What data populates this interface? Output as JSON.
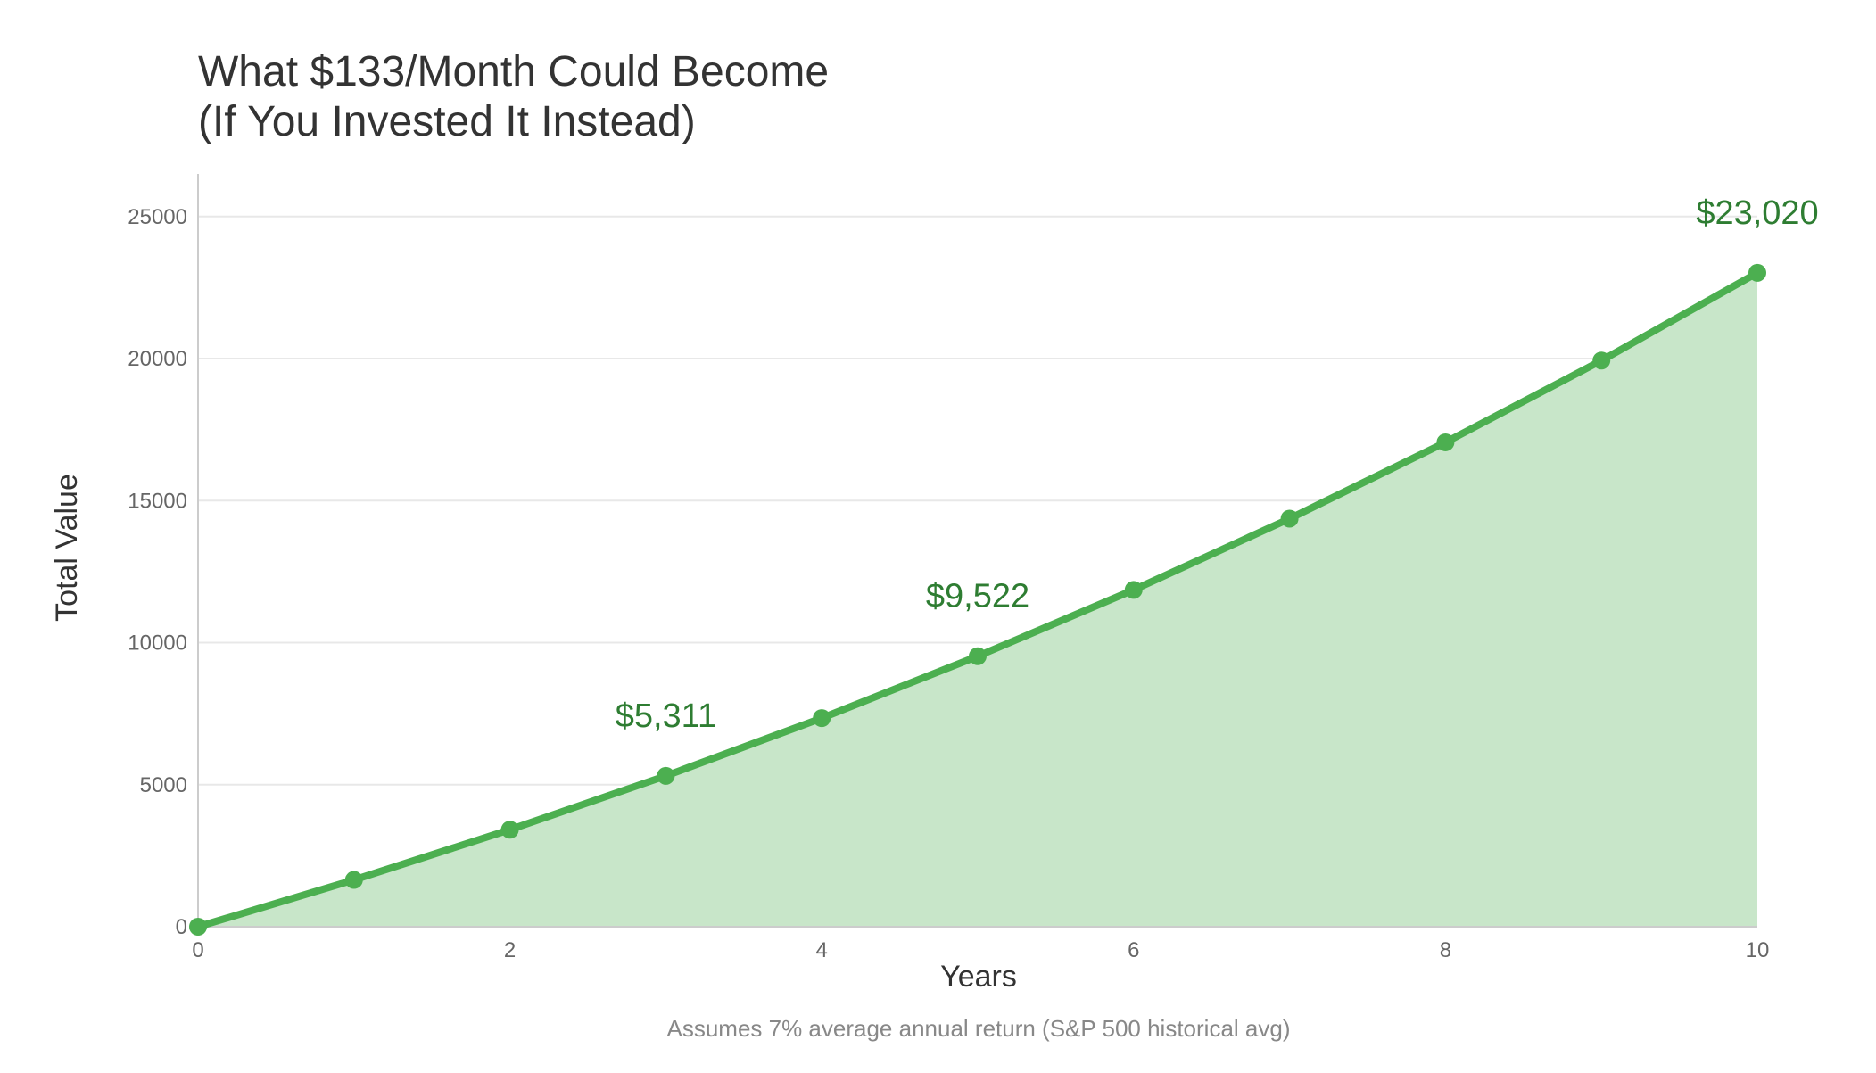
{
  "chart_data": {
    "type": "area",
    "title_lines": [
      "What $133/Month Could Become",
      "(If You Invested It Instead)"
    ],
    "xlabel": "Years",
    "ylabel": "Total Value",
    "footnote": "Assumes 7% average annual return (S&P 500 historical avg)",
    "x": [
      0,
      1,
      2,
      3,
      4,
      5,
      6,
      7,
      8,
      9,
      10
    ],
    "values": [
      0,
      1648,
      3416,
      5311,
      7343,
      9522,
      11858,
      14365,
      17051,
      19931,
      23020
    ],
    "xlim": [
      0,
      10
    ],
    "ylim": [
      0,
      26500
    ],
    "xticks": [
      "0",
      "2",
      "4",
      "6",
      "8",
      "10"
    ],
    "yticks": [
      "0",
      "5000",
      "10000",
      "15000",
      "20000",
      "25000"
    ],
    "annotations": [
      {
        "x": 3,
        "y": 5311,
        "text": "$5,311"
      },
      {
        "x": 5,
        "y": 9522,
        "text": "$9,522"
      },
      {
        "x": 10,
        "y": 23020,
        "text": "$23,020"
      }
    ],
    "grid": true,
    "colors": {
      "line": "#4caf50",
      "fill": "#c8e6c9",
      "annotation": "#2e7d32"
    }
  }
}
